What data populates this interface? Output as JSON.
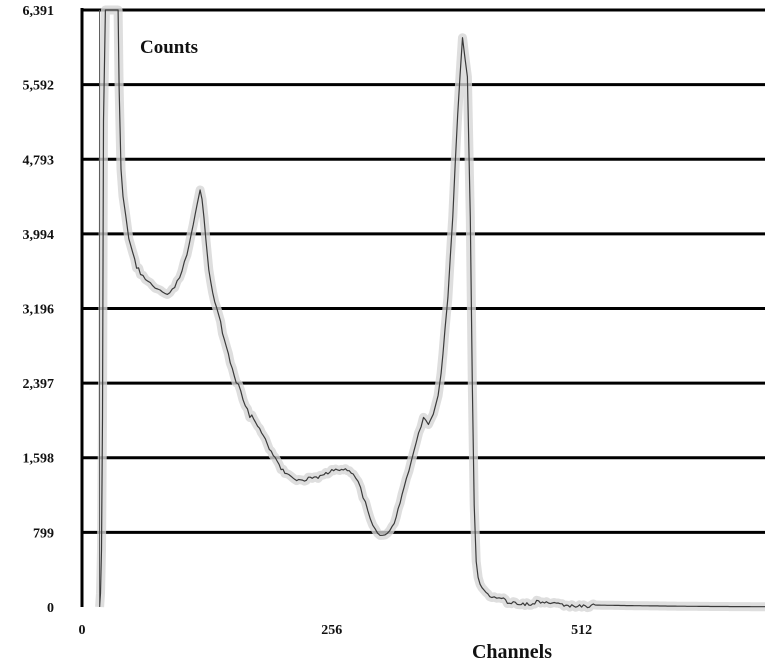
{
  "chart_data": {
    "type": "line",
    "title": "",
    "xlabel": "Channels",
    "ylabel": "Counts",
    "xlim": [
      0,
      700
    ],
    "ylim": [
      0,
      6391
    ],
    "yticks": [
      "0",
      "799",
      "1,598",
      "2,397",
      "3,196",
      "3,994",
      "4,793",
      "5,592",
      "6,391"
    ],
    "ytick_values": [
      0,
      799,
      1598,
      2397,
      3196,
      3994,
      4793,
      5592,
      6391
    ],
    "xticks": [
      "0",
      "256",
      "512"
    ],
    "xtick_values": [
      0,
      256,
      512
    ],
    "grid": "horizontal",
    "colors": {
      "line": "#3a3a3a",
      "halo": "#d6d6d6",
      "grid": "#000000"
    },
    "series": [
      {
        "x": [
          18,
          19,
          20,
          21,
          22,
          24,
          27,
          30,
          33,
          35,
          37,
          38,
          40,
          42,
          45,
          48,
          52,
          56,
          60,
          65,
          70,
          75,
          80,
          85,
          90,
          95,
          100,
          105,
          110,
          114,
          118,
          121,
          123,
          125,
          127,
          130,
          134,
          140,
          146,
          152,
          158,
          165,
          172,
          180,
          188,
          196,
          204,
          212,
          220,
          228,
          236,
          244,
          252,
          260,
          266,
          272,
          278,
          283,
          288,
          293,
          298,
          303,
          308,
          313,
          318,
          322,
          326,
          330,
          335,
          340,
          345,
          350,
          355,
          360,
          365,
          368,
          370,
          372,
          375,
          380,
          385,
          390,
          395,
          398,
          400,
          402,
          404,
          406,
          408,
          410,
          412,
          414,
          416,
          418,
          420,
          425,
          430,
          440,
          450,
          460,
          480,
          500,
          530,
          560,
          600,
          640,
          680,
          700
        ],
        "y": [
          0,
          120,
          600,
          2000,
          5200,
          6391,
          6391,
          6391,
          6391,
          6391,
          6391,
          5600,
          4700,
          4400,
          4200,
          3950,
          3800,
          3650,
          3550,
          3500,
          3450,
          3400,
          3370,
          3350,
          3380,
          3450,
          3550,
          3700,
          3900,
          4100,
          4300,
          4450,
          4350,
          4150,
          3900,
          3600,
          3350,
          3100,
          2880,
          2640,
          2420,
          2230,
          2060,
          1920,
          1770,
          1600,
          1500,
          1420,
          1380,
          1370,
          1360,
          1380,
          1420,
          1460,
          1500,
          1490,
          1450,
          1360,
          1200,
          1020,
          860,
          770,
          740,
          760,
          860,
          990,
          1140,
          1300,
          1480,
          1680,
          1880,
          2020,
          1940,
          2050,
          2250,
          2480,
          2700,
          2950,
          3300,
          4200,
          5300,
          6100,
          5700,
          4200,
          2400,
          1100,
          500,
          300,
          230,
          190,
          160,
          140,
          120,
          105,
          95,
          80,
          70,
          60,
          50,
          45,
          35,
          28,
          20,
          15,
          10,
          6,
          4,
          3
        ]
      }
    ]
  }
}
